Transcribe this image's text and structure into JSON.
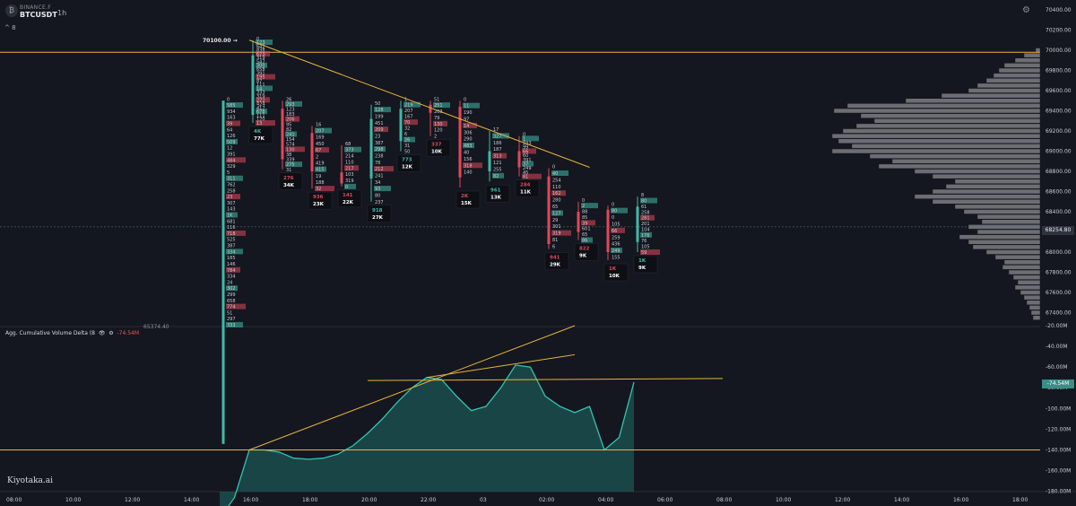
{
  "header": {
    "exchange": "BINANCE.F",
    "symbol": "BTCUSDT",
    "timeframe": "1h",
    "indicator_toggle": "^ 8"
  },
  "colors": {
    "background": "#14171f",
    "buy": "#3fb9a8",
    "sell": "#e2475a",
    "trendline": "#e8b33a",
    "profile": "#8a8c90",
    "cvd_line": "#35c2b0",
    "cvd_fill": "#1c5a57"
  },
  "chart_data": [
    {
      "type": "footprint",
      "title": "",
      "ylim": [
        67200,
        70400
      ],
      "price_ticks": [
        "70400.00",
        "70200.00",
        "70000.00",
        "69800.00",
        "69600.00",
        "69400.00",
        "69200.00",
        "69000.00",
        "68800.00",
        "68600.00",
        "68400.00",
        "68200.00",
        "68000.00",
        "67800.00",
        "67600.00",
        "67400.00"
      ],
      "current_price": "68254.80",
      "price_levels": [
        69980,
        68250
      ],
      "annotations": [
        "70100.00",
        "65374.40"
      ],
      "trendline": {
        "from": {
          "time": "16:00",
          "price": 70100
        },
        "to": {
          "time": "03:30",
          "price": 68840
        }
      },
      "candles": [
        {
          "time": "15:00",
          "open": 66100,
          "high": 69500,
          "low": 66100,
          "close": 69500,
          "delta": "",
          "volume": "",
          "text": [
            "0",
            "585",
            "934",
            "163",
            "39",
            "64",
            "126",
            "509",
            "12",
            "391",
            "484",
            "329",
            "5",
            "311",
            "762",
            "258",
            "23",
            "307",
            "143",
            "1K",
            "681",
            "116",
            "718",
            "525",
            "387",
            "334",
            "185",
            "146",
            "784",
            "334",
            "24",
            "302",
            "299",
            "658",
            "774",
            "51",
            "297",
            "333"
          ]
        },
        {
          "time": "16:00",
          "open": 69360,
          "high": 70100,
          "low": 69280,
          "close": 69950,
          "delta": "4K",
          "volume": "77K",
          "text": [
            "0",
            "123",
            "642",
            "838",
            "673",
            "319",
            "547",
            "300",
            "658",
            "391",
            "195",
            "87",
            "111",
            "14",
            "333",
            "319",
            "272",
            "424",
            "417",
            "678",
            "111",
            "120",
            "13"
          ]
        },
        {
          "time": "17:00",
          "open": 69420,
          "high": 69500,
          "low": 68820,
          "close": 68920,
          "delta": "276",
          "volume": "34K",
          "text": [
            "26",
            "293",
            "123",
            "183",
            "206",
            "95",
            "82",
            "241",
            "154",
            "574",
            "130",
            "38",
            "339",
            "275",
            "31"
          ]
        },
        {
          "time": "18:00",
          "open": 69180,
          "high": 69250,
          "low": 68630,
          "close": 68800,
          "delta": "936",
          "volume": "23K",
          "text": [
            "16",
            "207",
            "169",
            "450",
            "67",
            "2",
            "419",
            "415",
            "19",
            "188",
            "32"
          ]
        },
        {
          "time": "19:00",
          "open": 68790,
          "high": 69060,
          "low": 68650,
          "close": 68680,
          "delta": "141",
          "volume": "22K",
          "text": [
            "68",
            "373",
            "214",
            "110",
            "217",
            "103",
            "319",
            "0"
          ]
        },
        {
          "time": "20:00",
          "open": 68730,
          "high": 69460,
          "low": 68500,
          "close": 69320,
          "delta": "918",
          "volume": "27K",
          "text": [
            "50",
            "128",
            "199",
            "451",
            "209",
            "23",
            "387",
            "298",
            "238",
            "78",
            "212",
            "241",
            "34",
            "93",
            "80",
            "237"
          ]
        },
        {
          "time": "21:00",
          "open": 69100,
          "high": 69500,
          "low": 69000,
          "close": 69420,
          "delta": "773",
          "volume": "12K",
          "text": [
            "1",
            "219",
            "207",
            "167",
            "70",
            "32",
            "6",
            "26",
            "31",
            "50"
          ]
        },
        {
          "time": "22:00",
          "open": 69460,
          "high": 69500,
          "low": 69150,
          "close": 69380,
          "delta": "337",
          "volume": "10K",
          "text": [
            "51",
            "251",
            "203",
            "79",
            "130",
            "120",
            "2"
          ]
        },
        {
          "time": "23:00",
          "open": 69440,
          "high": 69500,
          "low": 68640,
          "close": 68740,
          "delta": "2K",
          "volume": "15K",
          "text": [
            "0",
            "11",
            "190",
            "97",
            "14",
            "306",
            "290",
            "483",
            "40",
            "156",
            "318",
            "140"
          ]
        },
        {
          "time": "00:00",
          "open": 68800,
          "high": 69200,
          "low": 68700,
          "close": 69000,
          "delta": "961",
          "volume": "13K",
          "text": [
            "17",
            "327",
            "186",
            "187",
            "313",
            "121",
            "255",
            "82"
          ]
        },
        {
          "time": "01:00",
          "open": 69000,
          "high": 69150,
          "low": 68750,
          "close": 68840,
          "delta": "284",
          "volume": "11K",
          "text": [
            "0",
            "1",
            "333",
            "99",
            "66",
            "60",
            "391",
            "37",
            "249",
            "45",
            "81"
          ]
        },
        {
          "time": "02:00",
          "open": 68750,
          "high": 68830,
          "low": 68030,
          "close": 68080,
          "delta": "941",
          "volume": "29K",
          "text": [
            "0",
            "40",
            "254",
            "110",
            "162",
            "280",
            "65",
            "127",
            "29",
            "301",
            "319",
            "81",
            "6"
          ]
        },
        {
          "time": "03:00",
          "open": 68400,
          "high": 68500,
          "low": 68120,
          "close": 68200,
          "delta": "822",
          "volume": "9K",
          "text": [
            "0",
            "2",
            "88",
            "85",
            "39",
            "601",
            "65",
            "86"
          ]
        },
        {
          "time": "04:00",
          "open": 68420,
          "high": 68460,
          "low": 67920,
          "close": 68000,
          "delta": "1K",
          "volume": "10K",
          "text": [
            "0",
            "80",
            "0",
            "105",
            "66",
            "259",
            "436",
            "249",
            "155"
          ]
        },
        {
          "time": "05:00",
          "open": 68100,
          "high": 68550,
          "low": 68000,
          "close": 68450,
          "delta": "1K",
          "volume": "9K",
          "text": [
            "8",
            "80",
            "61",
            "258",
            "281",
            "201",
            "104",
            "176",
            "76",
            "105",
            "59"
          ]
        }
      ],
      "volume_profile": [
        {
          "price": 70000,
          "volume": 5
        },
        {
          "price": 69950,
          "volume": 18
        },
        {
          "price": 69900,
          "volume": 28
        },
        {
          "price": 69850,
          "volume": 40
        },
        {
          "price": 69800,
          "volume": 46
        },
        {
          "price": 69750,
          "volume": 52
        },
        {
          "price": 69700,
          "volume": 60
        },
        {
          "price": 69650,
          "volume": 70
        },
        {
          "price": 69600,
          "volume": 80
        },
        {
          "price": 69550,
          "volume": 110
        },
        {
          "price": 69500,
          "volume": 150
        },
        {
          "price": 69450,
          "volume": 215
        },
        {
          "price": 69400,
          "volume": 230
        },
        {
          "price": 69350,
          "volume": 200
        },
        {
          "price": 69300,
          "volume": 185
        },
        {
          "price": 69250,
          "volume": 205
        },
        {
          "price": 69200,
          "volume": 220
        },
        {
          "price": 69150,
          "volume": 232
        },
        {
          "price": 69100,
          "volume": 225
        },
        {
          "price": 69050,
          "volume": 210
        },
        {
          "price": 69000,
          "volume": 232
        },
        {
          "price": 68950,
          "volume": 190
        },
        {
          "price": 68900,
          "volume": 165
        },
        {
          "price": 68850,
          "volume": 180
        },
        {
          "price": 68800,
          "volume": 140
        },
        {
          "price": 68750,
          "volume": 120
        },
        {
          "price": 68700,
          "volume": 95
        },
        {
          "price": 68650,
          "volume": 105
        },
        {
          "price": 68600,
          "volume": 120
        },
        {
          "price": 68550,
          "volume": 140
        },
        {
          "price": 68500,
          "volume": 120
        },
        {
          "price": 68450,
          "volume": 95
        },
        {
          "price": 68400,
          "volume": 85
        },
        {
          "price": 68350,
          "volume": 70
        },
        {
          "price": 68300,
          "volume": 65
        },
        {
          "price": 68250,
          "volume": 80
        },
        {
          "price": 68200,
          "volume": 70
        },
        {
          "price": 68150,
          "volume": 90
        },
        {
          "price": 68100,
          "volume": 80
        },
        {
          "price": 68050,
          "volume": 75
        },
        {
          "price": 68000,
          "volume": 60
        },
        {
          "price": 67950,
          "volume": 50
        },
        {
          "price": 67900,
          "volume": 40
        },
        {
          "price": 67850,
          "volume": 42
        },
        {
          "price": 67800,
          "volume": 35
        },
        {
          "price": 67750,
          "volume": 30
        },
        {
          "price": 67700,
          "volume": 25
        },
        {
          "price": 67650,
          "volume": 28
        },
        {
          "price": 67600,
          "volume": 22
        },
        {
          "price": 67550,
          "volume": 18
        },
        {
          "price": 67500,
          "volume": 15
        },
        {
          "price": 67450,
          "volume": 12
        },
        {
          "price": 67400,
          "volume": 10
        },
        {
          "price": 67350,
          "volume": 8
        }
      ]
    },
    {
      "type": "area",
      "title": "Agg. Cumulative Volume Delta (8",
      "current_value": "-74.54M",
      "ylim": [
        -208,
        -14
      ],
      "y_ticks": [
        "-20.00M",
        "-40.00M",
        "-60.00M",
        "-80.00M",
        "-100.00M",
        "-120.00M",
        "-140.00M",
        "-160.00M",
        "-180.00M",
        "-200.00M"
      ],
      "level_line": -140,
      "x": [
        "15:00",
        "15:30",
        "16:00",
        "16:30",
        "17:00",
        "17:30",
        "18:00",
        "18:30",
        "19:00",
        "19:30",
        "20:00",
        "20:30",
        "21:00",
        "21:30",
        "22:00",
        "22:30",
        "23:00",
        "23:30",
        "00:00",
        "00:30",
        "01:00",
        "01:30",
        "02:00",
        "02:30",
        "03:00",
        "03:30",
        "04:00",
        "04:30",
        "05:00"
      ],
      "values": [
        -206,
        -186,
        -140,
        -140,
        -142,
        -148,
        -149,
        -148,
        -144,
        -136,
        -124,
        -110,
        -94,
        -80,
        -70,
        -72,
        -88,
        -102,
        -98,
        -80,
        -58,
        -60,
        -88,
        -98,
        -104,
        -98,
        -140,
        -128,
        -74.54
      ],
      "trendlines": [
        {
          "from": {
            "time": "16:00",
            "value": -140
          },
          "to": {
            "time": "03:00",
            "value": -20
          }
        },
        {
          "from": {
            "time": "22:00",
            "value": -70
          },
          "to": {
            "time": "03:00",
            "value": -48
          }
        },
        {
          "from": {
            "time": "20:00",
            "value": -73
          },
          "to": {
            "time": "08:00",
            "value": -71
          }
        }
      ]
    }
  ],
  "time_axis": [
    "08:00",
    "10:00",
    "12:00",
    "14:00",
    "16:00",
    "18:00",
    "20:00",
    "22:00",
    "03",
    "02:00",
    "04:00",
    "06:00",
    "08:00",
    "10:00",
    "12:00",
    "14:00",
    "16:00",
    "18:00"
  ],
  "brand": "Kiyotaka.ai"
}
